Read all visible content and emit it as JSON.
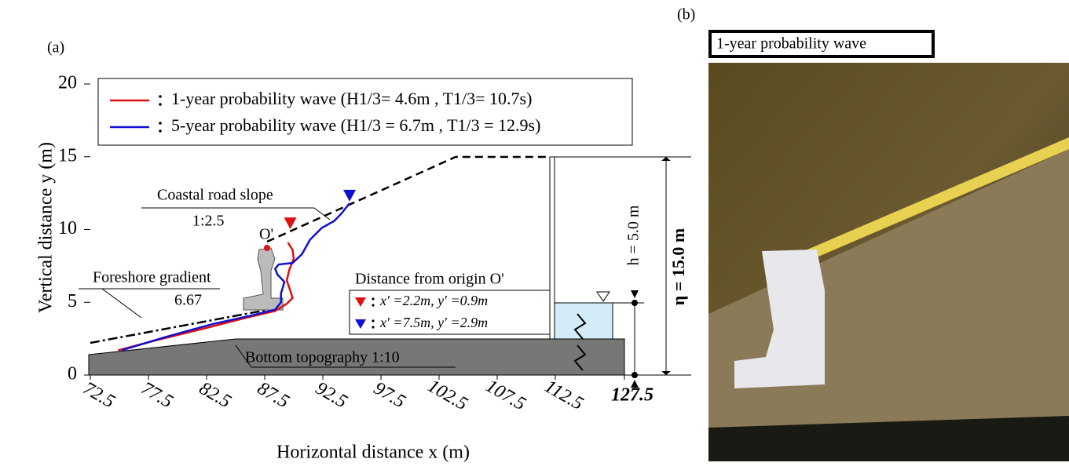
{
  "chart_data": {
    "type": "line",
    "panel_label": "(a)",
    "x_label": "Horizontal distance x (m)",
    "y_label": "Vertical distance y (m)",
    "xlim": [
      72.5,
      127.5
    ],
    "xticks": [
      72.5,
      77.5,
      82.5,
      87.5,
      92.5,
      97.5,
      102.5,
      107.5,
      112.5,
      127.5
    ],
    "ylim": [
      0,
      20
    ],
    "yticks": [
      0,
      5,
      10,
      15,
      20
    ],
    "series": [
      {
        "name": "1-year probability wave (H1/3= 4.6m , T1/3= 10.7s)",
        "color": "#e01010",
        "x": [
          74.9,
          78.2,
          82.3,
          85.7,
          88.4,
          89.4,
          89.9,
          89.7,
          89.4,
          89.6,
          90.0,
          89.9,
          89.5
        ],
        "values": [
          1.7,
          2.4,
          3.2,
          3.9,
          4.4,
          4.9,
          5.3,
          5.8,
          6.5,
          7.2,
          8.0,
          8.6,
          9.1
        ]
      },
      {
        "name": "5-year probability wave (H1/3 = 6.7m , T1/3 = 12.9s)",
        "color": "#1010d0",
        "x": [
          75.2,
          78.9,
          83.0,
          86.4,
          88.4,
          88.9,
          88.9,
          89.2,
          88.6,
          88.4,
          88.7,
          89.9,
          90.7,
          91.4,
          92.4,
          93.5,
          94.1,
          94.8
        ],
        "values": [
          1.7,
          2.6,
          3.5,
          4.1,
          4.5,
          5.0,
          5.6,
          6.4,
          6.9,
          7.3,
          7.6,
          7.7,
          8.3,
          9.3,
          10.1,
          10.6,
          11.1,
          11.8
        ]
      }
    ],
    "markers_title": "Distance from origin O'",
    "markers": [
      {
        "label": "x′ =2.2m, y′ =0.9m",
        "color": "#e01010",
        "x": 89.7,
        "y": 10.4
      },
      {
        "label": "x′ =7.5m, y′ =2.9m",
        "color": "#1010d0",
        "x": 94.8,
        "y": 12.3
      }
    ],
    "annotations": {
      "road": "Coastal road slope",
      "road_ratio": "1:2.5",
      "origin": "O'",
      "foreshore": "Foreshore gradient",
      "foreshore_value": "6.67",
      "bottom": "Bottom topography 1:10",
      "h": "h = 5.0 m",
      "eta": "η = 15.0 m"
    }
  },
  "photo": {
    "panel_label": "(b)",
    "caption": "1-year probability wave"
  }
}
